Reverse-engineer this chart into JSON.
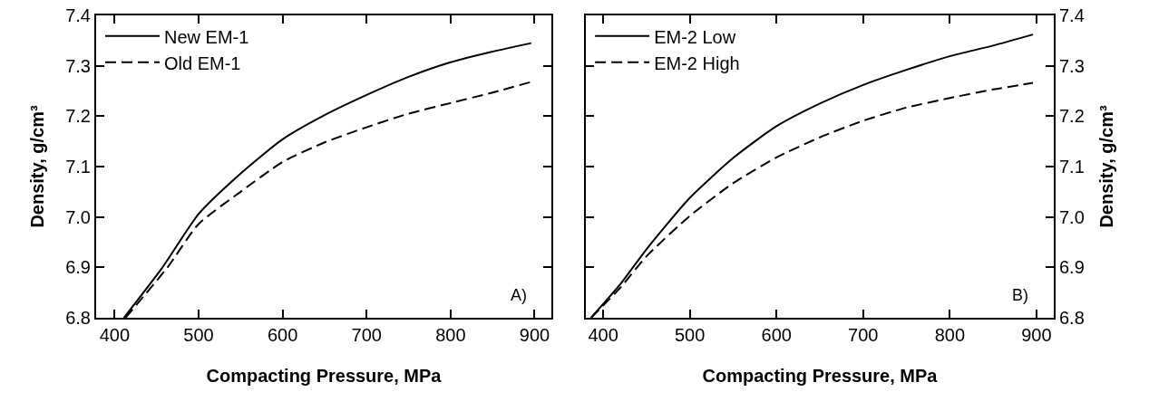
{
  "chart_data": [
    {
      "type": "line",
      "xlabel": "Compacting Pressure, MPa",
      "ylabel": "Density, g/cm³",
      "xlim": [
        378,
        920
      ],
      "ylim": [
        6.8,
        7.4
      ],
      "xticks": [
        400,
        500,
        600,
        700,
        800,
        900
      ],
      "yticks": [
        6.8,
        6.9,
        {
          "value": 7,
          "label": "7.0"
        },
        7.1,
        7.2,
        7.3,
        7.4
      ],
      "grid": false,
      "legend": "top left",
      "annotations": [
        "A)"
      ],
      "series": [
        {
          "name": "New EM-1",
          "color": "#000000",
          "line_style": "solid",
          "x": [
            411,
            457,
            500,
            550,
            600,
            650,
            700,
            750,
            800,
            850,
            896
          ],
          "values": [
            6.8,
            6.9,
            7.006,
            7.086,
            7.154,
            7.202,
            7.242,
            7.278,
            7.307,
            7.328,
            7.345
          ]
        },
        {
          "name": "Old EM-1",
          "color": "#000000",
          "line_style": "dashed",
          "x": [
            413,
            463,
            500,
            550,
            600,
            650,
            700,
            750,
            800,
            850,
            896
          ],
          "values": [
            6.8,
            6.9,
            6.986,
            7.05,
            7.109,
            7.148,
            7.178,
            7.205,
            7.226,
            7.247,
            7.268
          ]
        }
      ]
    },
    {
      "type": "line",
      "xlabel": "Compacting Pressure, MPa",
      "ylabel": "Density, g/cm³",
      "xlim": [
        380,
        920
      ],
      "ylim": [
        6.8,
        7.4
      ],
      "xticks": [
        400,
        500,
        600,
        700,
        800,
        900
      ],
      "yticks": [
        6.8,
        6.9,
        {
          "value": 7,
          "label": "7.0"
        },
        7.1,
        7.2,
        7.3,
        7.4
      ],
      "grid": false,
      "legend": "top left",
      "annotations": [
        "B)"
      ],
      "series": [
        {
          "name": "EM-2 Low",
          "color": "#000000",
          "line_style": "solid",
          "x": [
            386,
            420,
            450,
            500,
            550,
            600,
            650,
            700,
            750,
            800,
            850,
            896
          ],
          "values": [
            6.8,
            6.867,
            6.936,
            7.038,
            7.117,
            7.18,
            7.225,
            7.262,
            7.292,
            7.319,
            7.34,
            7.362
          ]
        },
        {
          "name": "EM-2 High",
          "color": "#000000",
          "line_style": "dashed",
          "x": [
            386,
            420,
            450,
            500,
            550,
            600,
            650,
            700,
            750,
            800,
            850,
            896
          ],
          "values": [
            6.8,
            6.86,
            6.922,
            7.002,
            7.067,
            7.118,
            7.158,
            7.191,
            7.217,
            7.236,
            7.253,
            7.266
          ]
        }
      ]
    }
  ]
}
